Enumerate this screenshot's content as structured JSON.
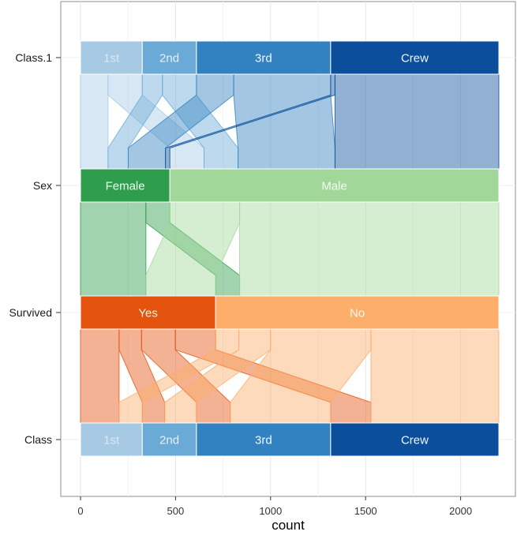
{
  "chart_data": {
    "type": "parallel_sets",
    "xlabel": "count",
    "xlim": [
      0,
      2201
    ],
    "x_ticks": [
      "0",
      "500",
      "1000",
      "1500",
      "2000"
    ],
    "x_tick_values": [
      0,
      500,
      1000,
      1500,
      2000
    ],
    "grid": true,
    "total": 2201,
    "axes": [
      {
        "name": "Class.1",
        "categories": [
          {
            "label": "1st",
            "value": 325,
            "color": "#a6c9e4",
            "text_color": "#dce9f4"
          },
          {
            "label": "2nd",
            "value": 285,
            "color": "#6aaad7",
            "text_color": "#e6f0f8"
          },
          {
            "label": "3rd",
            "value": 706,
            "color": "#3282c1",
            "text_color": "#f2f6fb"
          },
          {
            "label": "Crew",
            "value": 885,
            "color": "#0b4f9c",
            "text_color": "#f2f6fb"
          }
        ]
      },
      {
        "name": "Sex",
        "categories": [
          {
            "label": "Female",
            "value": 470,
            "color": "#2e9e4e",
            "text_color": "#f2f9f3"
          },
          {
            "label": "Male",
            "value": 1731,
            "color": "#a1d89a",
            "text_color": "#f5fbf4"
          }
        ]
      },
      {
        "name": "Survived",
        "categories": [
          {
            "label": "Yes",
            "value": 711,
            "color": "#e5540f",
            "text_color": "#fdf0e8"
          },
          {
            "label": "No",
            "value": 1490,
            "color": "#fdae6b",
            "text_color": "#fff6ee"
          }
        ]
      },
      {
        "name": "Class",
        "categories": [
          {
            "label": "1st",
            "value": 325,
            "color": "#a6c9e4",
            "text_color": "#dce9f4"
          },
          {
            "label": "2nd",
            "value": 285,
            "color": "#6aaad7",
            "text_color": "#e6f0f8"
          },
          {
            "label": "3rd",
            "value": 706,
            "color": "#3282c1",
            "text_color": "#f2f6fb"
          },
          {
            "label": "Crew",
            "value": 885,
            "color": "#0b4f9c",
            "text_color": "#f2f6fb"
          }
        ]
      }
    ],
    "ribbons": [
      {
        "between": [
          "Class.1",
          "Sex"
        ],
        "palette": [
          "#96d09c",
          "#bde3b8",
          "#8bc98c",
          "#2e9e4e"
        ],
        "flows": [
          {
            "from": "1st",
            "to": "Female",
            "value": 145
          },
          {
            "from": "1st",
            "to": "Male",
            "value": 180
          },
          {
            "from": "2nd",
            "to": "Female",
            "value": 106
          },
          {
            "from": "2nd",
            "to": "Male",
            "value": 179
          },
          {
            "from": "3rd",
            "to": "Female",
            "value": 196
          },
          {
            "from": "3rd",
            "to": "Male",
            "value": 510
          },
          {
            "from": "Crew",
            "to": "Female",
            "value": 23
          },
          {
            "from": "Crew",
            "to": "Male",
            "value": 862
          }
        ]
      },
      {
        "between": [
          "Sex",
          "Survived"
        ],
        "flows": [
          {
            "from": "Female",
            "to": "Yes",
            "value": 344
          },
          {
            "from": "Female",
            "to": "No",
            "value": 126
          },
          {
            "from": "Male",
            "to": "Yes",
            "value": 367
          },
          {
            "from": "Male",
            "to": "No",
            "value": 1364
          }
        ]
      },
      {
        "between": [
          "Survived",
          "Class"
        ],
        "flows": [
          {
            "from": "Yes",
            "to": "1st",
            "value": 203
          },
          {
            "from": "Yes",
            "to": "2nd",
            "value": 118
          },
          {
            "from": "Yes",
            "to": "3rd",
            "value": 178
          },
          {
            "from": "Yes",
            "to": "Crew",
            "value": 212
          },
          {
            "from": "No",
            "to": "1st",
            "value": 122
          },
          {
            "from": "No",
            "to": "2nd",
            "value": 167
          },
          {
            "from": "No",
            "to": "3rd",
            "value": 528
          },
          {
            "from": "No",
            "to": "Crew",
            "value": 673
          }
        ]
      }
    ]
  }
}
